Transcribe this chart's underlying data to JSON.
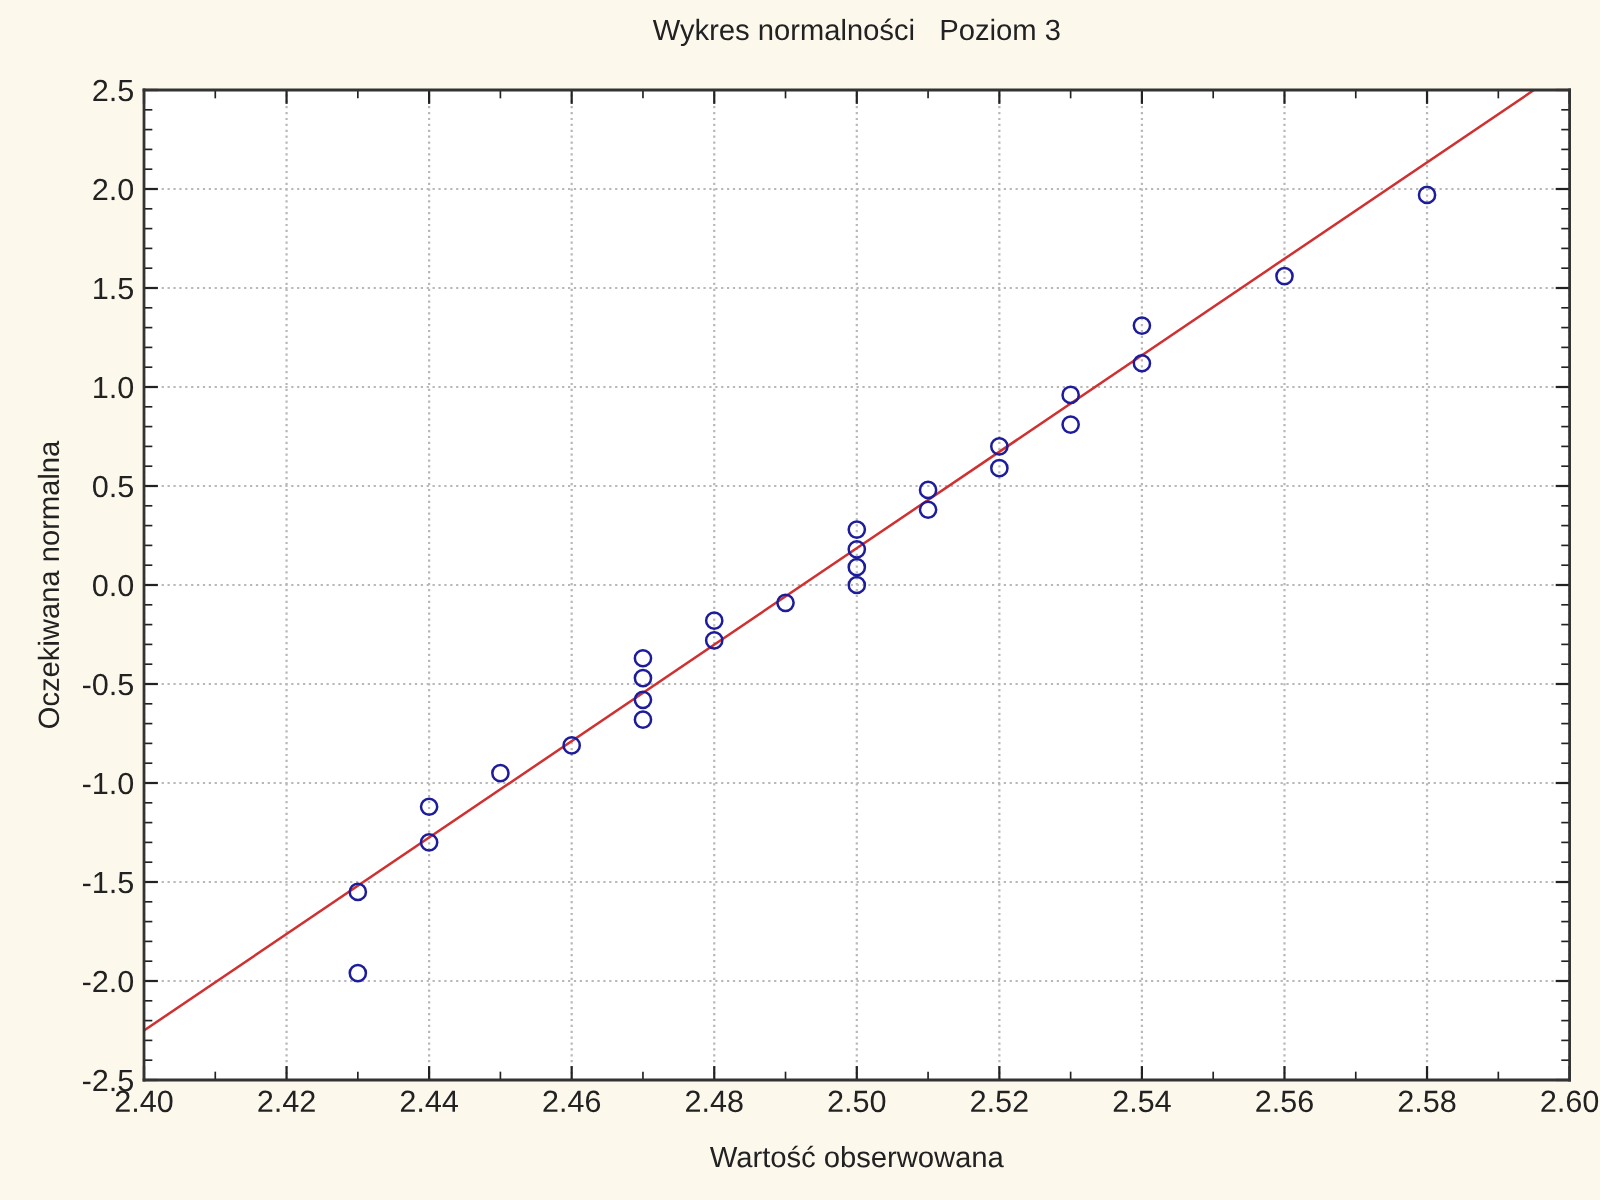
{
  "chart_data": {
    "type": "scatter",
    "title": "Wykres normalności   Poziom 3",
    "xlabel": "Wartość obserwowana",
    "ylabel": "Oczekiwana normalna",
    "series": [
      {
        "color": "#1c1c9c",
        "marker": "circle",
        "x": [
          2.43,
          2.43,
          2.44,
          2.44,
          2.45,
          2.46,
          2.47,
          2.47,
          2.47,
          2.47,
          2.48,
          2.48,
          2.49,
          2.5,
          2.5,
          2.5,
          2.5,
          2.51,
          2.51,
          2.52,
          2.52,
          2.53,
          2.53,
          2.54,
          2.54,
          2.56,
          2.58
        ],
        "values": [
          -1.55,
          -1.96,
          -1.12,
          -1.3,
          -0.95,
          -0.81,
          -0.37,
          -0.47,
          -0.58,
          -0.68,
          -0.18,
          -0.28,
          -0.09,
          0.28,
          0.18,
          0.09,
          0.0,
          0.48,
          0.38,
          0.7,
          0.59,
          0.96,
          0.81,
          1.31,
          1.12,
          1.56,
          1.97
        ]
      },
      {
        "type": "line",
        "color": "#d03030",
        "marker": "none",
        "line_style": "solid",
        "x": [
          2.4,
          2.595
        ],
        "values": [
          -2.25,
          2.5
        ]
      }
    ],
    "xlim": [
      2.4,
      2.6
    ],
    "xticks": [
      {
        "value": 2.4,
        "label": "2.40"
      },
      {
        "value": 2.42,
        "label": "2.42"
      },
      {
        "value": 2.44,
        "label": "2.44"
      },
      {
        "value": 2.46,
        "label": "2.46"
      },
      {
        "value": 2.48,
        "label": "2.48"
      },
      {
        "value": 2.5,
        "label": "2.50"
      },
      {
        "value": 2.52,
        "label": "2.52"
      },
      {
        "value": 2.54,
        "label": "2.54"
      },
      {
        "value": 2.56,
        "label": "2.56"
      },
      {
        "value": 2.58,
        "label": "2.58"
      },
      {
        "value": 2.6,
        "label": "2.60"
      }
    ],
    "ylim": [
      -2.5,
      2.5
    ],
    "yticks": [
      {
        "value": -2.5,
        "label": "-2.5"
      },
      {
        "value": -2.0,
        "label": "-2.0"
      },
      {
        "value": -1.5,
        "label": "-1.5"
      },
      {
        "value": -1.0,
        "label": "-1.0"
      },
      {
        "value": -0.5,
        "label": "-0.5"
      },
      {
        "value": 0.0,
        "label": "0.0"
      },
      {
        "value": 0.5,
        "label": "0.5"
      },
      {
        "value": 1.0,
        "label": "1.0"
      },
      {
        "value": 1.5,
        "label": "1.5"
      },
      {
        "value": 2.0,
        "label": "2.0"
      },
      {
        "value": 2.5,
        "label": "2.5"
      }
    ],
    "grid": true
  }
}
